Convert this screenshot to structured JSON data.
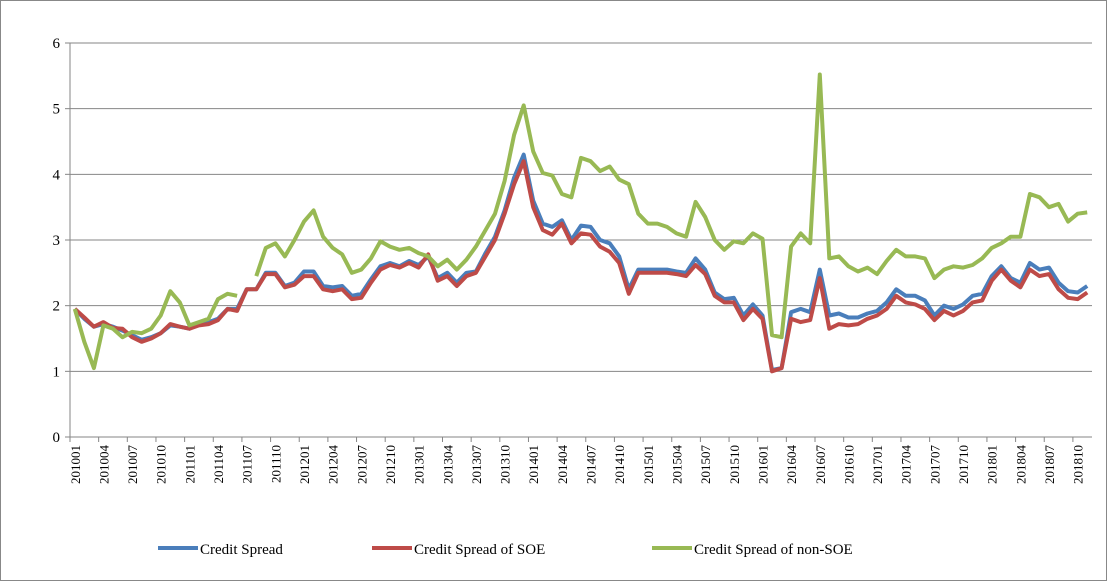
{
  "chart_data": {
    "type": "line",
    "categories": [
      "201001",
      null,
      null,
      "201004",
      null,
      null,
      "201007",
      null,
      null,
      "201010",
      null,
      null,
      "201101",
      null,
      null,
      "201104",
      null,
      null,
      "201107",
      null,
      null,
      "201110",
      null,
      null,
      "201201",
      null,
      null,
      "201204",
      null,
      null,
      "201207",
      null,
      null,
      "201210",
      null,
      null,
      "201301",
      null,
      null,
      "201304",
      null,
      null,
      "201307",
      null,
      null,
      "201310",
      null,
      null,
      "201401",
      null,
      null,
      "201404",
      null,
      null,
      "201407",
      null,
      null,
      "201410",
      null,
      null,
      "201501",
      null,
      null,
      "201504",
      null,
      null,
      "201507",
      null,
      null,
      "201510",
      null,
      null,
      "201601",
      null,
      null,
      "201604",
      null,
      null,
      "201607",
      null,
      null,
      "201610",
      null,
      null,
      "201701",
      null,
      null,
      "201704",
      null,
      null,
      "201707",
      null,
      null,
      "201710",
      null,
      null,
      "201801",
      null,
      null,
      "201804",
      null,
      null,
      "201807",
      null,
      null,
      "201810",
      null
    ],
    "series": [
      {
        "name": "Credit Spread",
        "color": "#4a7ebb",
        "values": [
          1.95,
          1.8,
          1.68,
          1.72,
          1.68,
          1.62,
          1.55,
          1.48,
          1.52,
          1.58,
          1.7,
          1.68,
          1.65,
          1.72,
          1.75,
          1.8,
          1.95,
          1.95,
          2.25,
          2.25,
          2.5,
          2.5,
          2.3,
          2.35,
          2.52,
          2.52,
          2.3,
          2.28,
          2.3,
          2.15,
          2.18,
          2.4,
          2.6,
          2.65,
          2.6,
          2.68,
          2.62,
          2.75,
          2.42,
          2.5,
          2.35,
          2.5,
          2.52,
          2.8,
          3.05,
          3.45,
          3.95,
          4.3,
          3.6,
          3.25,
          3.2,
          3.3,
          3.0,
          3.22,
          3.2,
          3.0,
          2.95,
          2.75,
          2.25,
          2.55,
          2.55,
          2.55,
          2.55,
          2.52,
          2.5,
          2.72,
          2.55,
          2.2,
          2.1,
          2.12,
          1.85,
          2.02,
          1.85,
          1.02,
          1.05,
          1.9,
          1.95,
          1.9,
          2.55,
          1.85,
          1.88,
          1.82,
          1.82,
          1.88,
          1.92,
          2.05,
          2.25,
          2.15,
          2.15,
          2.08,
          1.85,
          2.0,
          1.95,
          2.02,
          2.15,
          2.18,
          2.45,
          2.6,
          2.42,
          2.35,
          2.65,
          2.55,
          2.58,
          2.35,
          2.22,
          2.2,
          2.3
        ]
      },
      {
        "name": "Credit Spread of SOE",
        "color": "#be4b48",
        "values": [
          1.95,
          1.82,
          1.68,
          1.75,
          1.66,
          1.65,
          1.52,
          1.45,
          1.5,
          1.58,
          1.72,
          1.68,
          1.65,
          1.7,
          1.72,
          1.78,
          1.95,
          1.92,
          2.25,
          2.25,
          2.48,
          2.48,
          2.28,
          2.32,
          2.45,
          2.45,
          2.25,
          2.22,
          2.25,
          2.1,
          2.12,
          2.35,
          2.55,
          2.62,
          2.58,
          2.65,
          2.58,
          2.78,
          2.38,
          2.45,
          2.3,
          2.45,
          2.5,
          2.75,
          3.0,
          3.4,
          3.85,
          4.2,
          3.5,
          3.15,
          3.08,
          3.25,
          2.95,
          3.1,
          3.08,
          2.9,
          2.82,
          2.65,
          2.18,
          2.5,
          2.5,
          2.5,
          2.5,
          2.48,
          2.45,
          2.62,
          2.48,
          2.15,
          2.05,
          2.05,
          1.78,
          1.95,
          1.8,
          1.0,
          1.05,
          1.8,
          1.75,
          1.78,
          2.42,
          1.65,
          1.72,
          1.7,
          1.72,
          1.8,
          1.85,
          1.95,
          2.15,
          2.05,
          2.02,
          1.95,
          1.78,
          1.92,
          1.85,
          1.92,
          2.05,
          2.08,
          2.38,
          2.55,
          2.38,
          2.28,
          2.55,
          2.45,
          2.48,
          2.25,
          2.12,
          2.1,
          2.2
        ]
      },
      {
        "name": "Credit Spread of non-SOE",
        "color": "#98b954",
        "values": [
          1.95,
          1.45,
          1.05,
          1.7,
          1.65,
          1.52,
          1.6,
          1.58,
          1.65,
          1.85,
          2.22,
          2.05,
          1.7,
          1.75,
          1.8,
          2.1,
          2.18,
          2.15,
          null,
          2.45,
          2.88,
          2.95,
          2.75,
          3.0,
          3.28,
          3.45,
          3.05,
          2.88,
          2.78,
          2.5,
          2.55,
          2.72,
          2.98,
          2.9,
          2.85,
          2.88,
          2.8,
          2.75,
          2.6,
          2.7,
          2.55,
          2.7,
          2.9,
          3.15,
          3.4,
          3.9,
          4.6,
          5.05,
          4.35,
          4.02,
          3.98,
          3.7,
          3.65,
          4.25,
          4.2,
          4.05,
          4.12,
          3.92,
          3.85,
          3.4,
          3.25,
          3.25,
          3.2,
          3.1,
          3.05,
          3.58,
          3.35,
          3.0,
          2.85,
          2.98,
          2.95,
          3.1,
          3.02,
          1.55,
          1.52,
          2.9,
          3.1,
          2.95,
          5.52,
          2.72,
          2.75,
          2.6,
          2.52,
          2.58,
          2.48,
          2.68,
          2.85,
          2.75,
          2.75,
          2.72,
          2.42,
          2.55,
          2.6,
          2.58,
          2.62,
          2.72,
          2.88,
          2.95,
          3.05,
          3.05,
          3.7,
          3.65,
          3.5,
          3.55,
          3.28,
          3.4,
          3.42
        ]
      }
    ],
    "ylim": [
      0,
      6
    ],
    "yticks": [
      0,
      1,
      2,
      3,
      4,
      5,
      6
    ],
    "grid": true,
    "legend": "bottom"
  }
}
